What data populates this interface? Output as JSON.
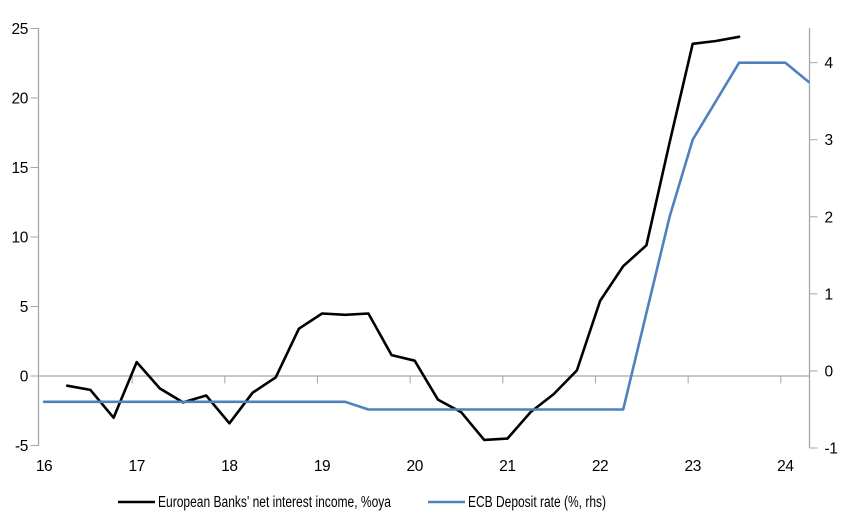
{
  "chart_data": {
    "type": "line",
    "title": "",
    "x_axis": {
      "tick_values": [
        16,
        17,
        18,
        19,
        20,
        21,
        22,
        23,
        24
      ],
      "tick_labels": [
        "16",
        "17",
        "18",
        "19",
        "20",
        "21",
        "22",
        "23",
        "24"
      ],
      "xlim": [
        15.94,
        24.26
      ],
      "grid": false
    },
    "y_axis_left": {
      "tick_values": [
        25,
        20,
        15,
        10,
        5,
        0,
        -5
      ],
      "tick_labels": [
        "25",
        "20",
        "15",
        "10",
        "5",
        "0",
        "-5"
      ],
      "ylim": [
        -5,
        25
      ],
      "zero_line": true
    },
    "y_axis_right": {
      "tick_values": [
        4,
        3,
        2,
        1,
        0,
        -1
      ],
      "tick_labels": [
        "4",
        "3",
        "2",
        "1",
        "0",
        "-1"
      ],
      "ylim": [
        -1,
        4.45
      ]
    },
    "series": [
      {
        "name": "European Banks' net interest income, %oya",
        "axis": "left",
        "color": "#000000",
        "x": [
          16.25,
          16.5,
          16.75,
          17.0,
          17.25,
          17.5,
          17.75,
          18.0,
          18.25,
          18.5,
          18.75,
          19.0,
          19.25,
          19.5,
          19.75,
          20.0,
          20.25,
          20.5,
          20.75,
          21.0,
          21.25,
          21.5,
          21.75,
          22.0,
          22.25,
          22.5,
          22.75,
          23.0,
          23.25,
          23.5
        ],
        "values": [
          -0.7,
          -1.0,
          -3.0,
          1.0,
          -0.9,
          -1.9,
          -1.4,
          -3.4,
          -1.2,
          -0.1,
          3.4,
          4.5,
          4.4,
          4.5,
          1.5,
          1.1,
          -1.7,
          -2.6,
          -4.6,
          -4.5,
          -2.6,
          -1.3,
          0.4,
          5.4,
          7.9,
          9.4,
          16.8,
          23.9,
          24.1,
          24.4
        ]
      },
      {
        "name": "ECB Deposit rate (%, rhs)",
        "axis": "right",
        "color": "#4F81BD",
        "x": [
          16.0,
          16.25,
          16.5,
          16.75,
          17.0,
          17.25,
          17.5,
          17.75,
          18.0,
          18.25,
          18.5,
          18.75,
          19.0,
          19.25,
          19.5,
          19.75,
          20.0,
          20.25,
          20.5,
          20.75,
          21.0,
          21.25,
          21.5,
          21.75,
          22.0,
          22.25,
          22.5,
          22.75,
          23.0,
          23.25,
          23.5,
          23.75,
          24.0,
          24.25
        ],
        "values": [
          -0.4,
          -0.4,
          -0.4,
          -0.4,
          -0.4,
          -0.4,
          -0.4,
          -0.4,
          -0.4,
          -0.4,
          -0.4,
          -0.4,
          -0.4,
          -0.4,
          -0.5,
          -0.5,
          -0.5,
          -0.5,
          -0.5,
          -0.5,
          -0.5,
          -0.5,
          -0.5,
          -0.5,
          -0.5,
          -0.5,
          0.75,
          2.0,
          3.0,
          3.5,
          4.0,
          4.0,
          4.0,
          3.75
        ]
      }
    ],
    "legend": {
      "position": "bottom",
      "entries": [
        {
          "label": "European Banks' net interest income, %oya",
          "color": "#000000"
        },
        {
          "label": "ECB Deposit rate (%, rhs)",
          "color": "#4F81BD"
        }
      ]
    }
  },
  "colors": {
    "axis": "#A6A6A6",
    "zero_line": "#A6A6A6",
    "text": "#000000",
    "background": "#FFFFFF",
    "series_primary": "#000000",
    "series_secondary": "#4F81BD"
  }
}
